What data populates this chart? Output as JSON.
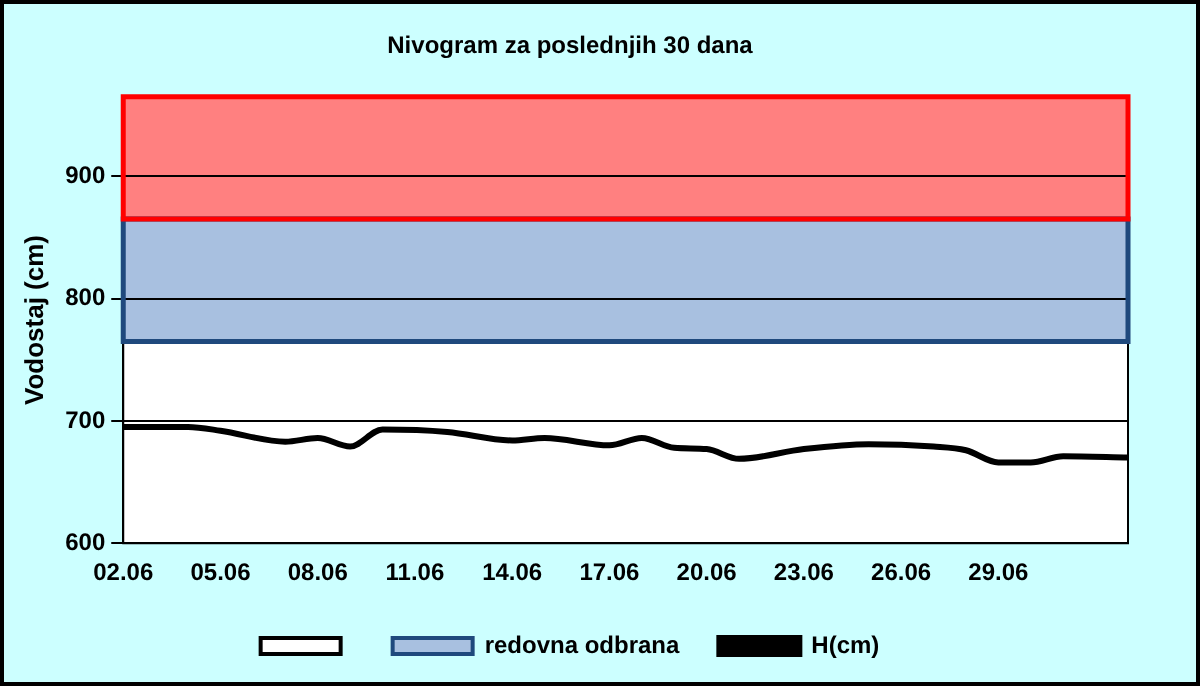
{
  "chart_data": {
    "type": "line",
    "title": "Nivogram za poslednjih 30 dana",
    "ylabel": "Vodostaj (cm)",
    "xlim": [
      "--06-02",
      "--07-03"
    ],
    "xticks": [
      {
        "value": "--06-02",
        "label": "02.06"
      },
      {
        "value": "--06-05",
        "label": "05.06"
      },
      {
        "value": "--06-08",
        "label": "08.06"
      },
      {
        "value": "--06-11",
        "label": "11.06"
      },
      {
        "value": "--06-14",
        "label": "14.06"
      },
      {
        "value": "--06-17",
        "label": "17.06"
      },
      {
        "value": "--06-20",
        "label": "20.06"
      },
      {
        "value": "--06-23",
        "label": "23.06"
      },
      {
        "value": "--06-26",
        "label": "26.06"
      },
      {
        "value": "--06-29",
        "label": "29.06"
      }
    ],
    "ylim": [
      600,
      965
    ],
    "yticks": [
      600,
      700,
      800,
      900
    ],
    "series": [
      {
        "name": "H(cm)",
        "color": "#000000",
        "x": [
          "--06-02",
          "--06-04",
          "--06-05",
          "--06-07",
          "--06-08",
          "--06-09",
          "--06-10",
          "--06-12",
          "--06-14",
          "--06-15",
          "--06-17",
          "--06-18",
          "--06-19",
          "--06-20",
          "--06-21",
          "--06-23",
          "--06-25",
          "--06-27",
          "--06-28",
          "--06-29",
          "--06-30",
          "--07-01",
          "--07-03"
        ],
        "values": [
          695,
          695,
          692,
          683,
          686,
          679,
          693,
          691,
          684,
          686,
          680,
          686,
          678,
          677,
          669,
          677,
          681,
          679,
          676,
          666,
          666,
          671,
          670
        ]
      }
    ],
    "bands": [
      {
        "axis": "y",
        "from": 600,
        "to": 765,
        "color": "#ffffff"
      },
      {
        "axis": "y",
        "from": 765,
        "to": 865,
        "label": "redovna odbrana",
        "color": "#a8c0e0"
      },
      {
        "axis": "y",
        "from": 865,
        "to": 965,
        "color": "#ff8080"
      }
    ],
    "grid": "y",
    "legend": "bottom",
    "marker": "none",
    "line_style": "solid"
  }
}
